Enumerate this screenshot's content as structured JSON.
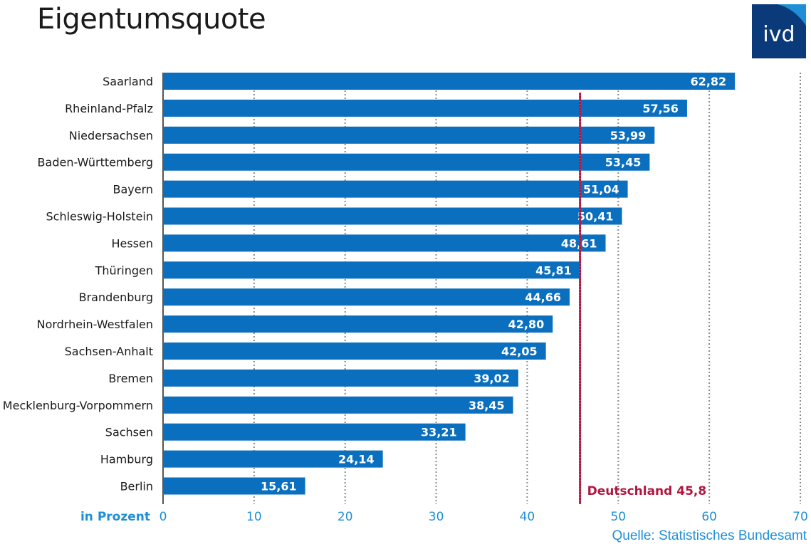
{
  "title": "Eigentumsquote",
  "logo": {
    "text": "ivd",
    "color": "#0b3a7a",
    "accent": "#1e8fd6"
  },
  "source": "Quelle: Statistisches Bundesamt",
  "colors": {
    "bar": "#0a6fbe",
    "reference": "#b0173f",
    "axis": "#1e8fd6",
    "grid": "#8a8a8a"
  },
  "chart_data": {
    "type": "bar",
    "orientation": "horizontal",
    "title": "Eigentumsquote",
    "unit_label": "in Prozent",
    "categories": [
      "Saarland",
      "Rheinland-Pfalz",
      "Niedersachsen",
      "Baden-Württemberg",
      "Bayern",
      "Schleswig-Holstein",
      "Hessen",
      "Thüringen",
      "Brandenburg",
      "Nordrhein-Westfalen",
      "Sachsen-Anhalt",
      "Bremen",
      "Mecklenburg-Vorpommern",
      "Sachsen",
      "Hamburg",
      "Berlin"
    ],
    "values": [
      62.82,
      57.56,
      53.99,
      53.45,
      51.04,
      50.41,
      48.61,
      45.81,
      44.66,
      42.8,
      42.05,
      39.02,
      38.45,
      33.21,
      24.14,
      15.61
    ],
    "value_labels": [
      "62,82",
      "57,56",
      "53,99",
      "53,45",
      "51,04",
      "50,41",
      "48,61",
      "45,81",
      "44,66",
      "42,80",
      "42,05",
      "39,02",
      "38,45",
      "33,21",
      "24,14",
      "15,61"
    ],
    "xlim": [
      0,
      70
    ],
    "xticks": [
      0,
      10,
      20,
      30,
      40,
      50,
      60,
      70
    ],
    "grid": true,
    "reference_line": {
      "value": 45.8,
      "label": "Deutschland 45,8"
    }
  }
}
